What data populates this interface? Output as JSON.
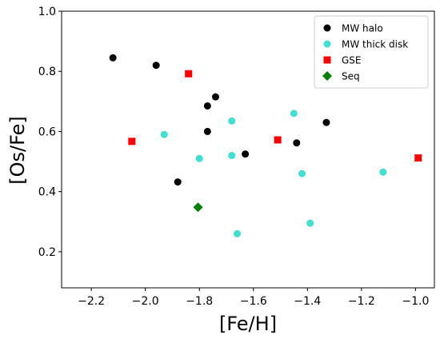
{
  "chart_data": {
    "type": "scatter",
    "title": "",
    "xlabel": "[Fe/H]",
    "ylabel": "[Os/Fe]",
    "xlim": [
      -2.31,
      -0.93
    ],
    "ylim": [
      0.08,
      1.0
    ],
    "xticks": [
      -2.2,
      -2.0,
      -1.8,
      -1.6,
      -1.4,
      -1.2,
      -1.0
    ],
    "xtick_labels": [
      "−2.2",
      "−2.0",
      "−1.8",
      "−1.6",
      "−1.4",
      "−1.2",
      "−1.0"
    ],
    "yticks": [
      0.2,
      0.4,
      0.6,
      0.8,
      1.0
    ],
    "ytick_labels": [
      "0.2",
      "0.4",
      "0.6",
      "0.8",
      "1.0"
    ],
    "grid": false,
    "legend_position": "top-right",
    "series": [
      {
        "name": "MW halo",
        "marker": "circle",
        "color": "#000000",
        "points": [
          {
            "x": -2.12,
            "y": 0.845
          },
          {
            "x": -1.96,
            "y": 0.82
          },
          {
            "x": -1.74,
            "y": 0.715
          },
          {
            "x": -1.77,
            "y": 0.685
          },
          {
            "x": -1.77,
            "y": 0.6
          },
          {
            "x": -1.63,
            "y": 0.525
          },
          {
            "x": -1.88,
            "y": 0.432
          },
          {
            "x": -1.44,
            "y": 0.562
          },
          {
            "x": -1.33,
            "y": 0.63
          }
        ]
      },
      {
        "name": "MW thick disk",
        "marker": "circle",
        "color": "#40e0d0",
        "points": [
          {
            "x": -1.93,
            "y": 0.59
          },
          {
            "x": -1.8,
            "y": 0.51
          },
          {
            "x": -1.68,
            "y": 0.635
          },
          {
            "x": -1.68,
            "y": 0.52
          },
          {
            "x": -1.45,
            "y": 0.66
          },
          {
            "x": -1.42,
            "y": 0.46
          },
          {
            "x": -1.12,
            "y": 0.465
          },
          {
            "x": -1.66,
            "y": 0.26
          },
          {
            "x": -1.39,
            "y": 0.295
          }
        ]
      },
      {
        "name": "GSE",
        "marker": "square",
        "color": "#ff0000",
        "points": [
          {
            "x": -2.05,
            "y": 0.567
          },
          {
            "x": -1.84,
            "y": 0.792
          },
          {
            "x": -1.51,
            "y": 0.572
          },
          {
            "x": -0.99,
            "y": 0.512
          }
        ]
      },
      {
        "name": "Seq",
        "marker": "diamond",
        "color": "#008000",
        "points": [
          {
            "x": -1.805,
            "y": 0.348
          }
        ]
      }
    ]
  }
}
